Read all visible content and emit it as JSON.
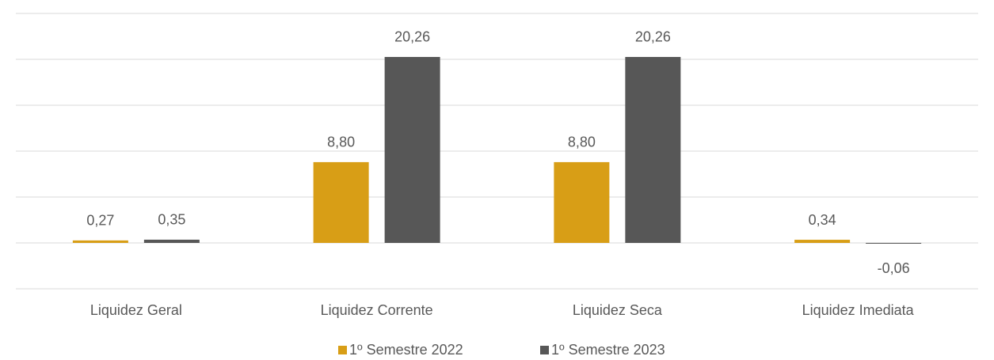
{
  "chart_data": {
    "type": "bar",
    "categories": [
      "Liquidez Geral",
      "Liquidez Corrente",
      "Liquidez Seca",
      "Liquidez Imediata"
    ],
    "series": [
      {
        "name": "1º Semestre 2022",
        "color": "#d89e16",
        "values": [
          0.27,
          8.8,
          8.8,
          0.34
        ],
        "value_labels": [
          "0,27",
          "8,80",
          "8,80",
          "0,34"
        ]
      },
      {
        "name": "1º Semestre 2023",
        "color": "#575757",
        "values": [
          0.35,
          20.26,
          20.26,
          -0.06
        ],
        "value_labels": [
          "0,35",
          "20,26",
          "20,26",
          "-0,06"
        ]
      }
    ],
    "ylim": [
      -5,
      25
    ],
    "yticks": [
      -5,
      0,
      5,
      10,
      15,
      20,
      25
    ],
    "grid": true,
    "legend": "bottom"
  }
}
